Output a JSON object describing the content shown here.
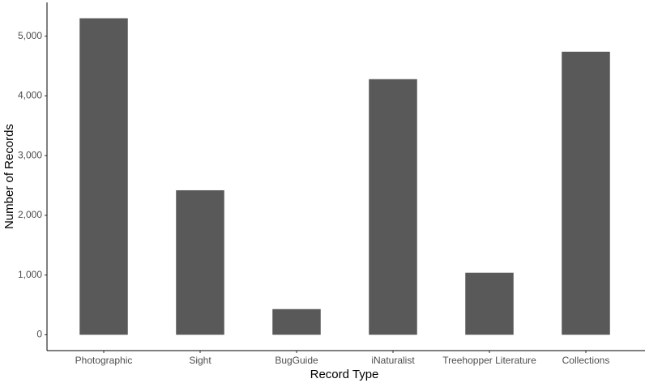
{
  "chart_data": {
    "type": "bar",
    "x_label": "Record Type",
    "y_label": "Number of Records",
    "categories": [
      "Photographic",
      "Sight",
      "BugGuide",
      "iNaturalist",
      "Treehopper Literature",
      "Collections"
    ],
    "values": [
      5300,
      2420,
      430,
      4280,
      1040,
      4740
    ],
    "color": "#595959",
    "ylim": [
      -265,
      5565
    ],
    "yticks": [
      0,
      {
        "value": 1000,
        "label": "1,000"
      },
      {
        "value": 2000,
        "label": "2,000"
      },
      {
        "value": 3000,
        "label": "3,000"
      },
      {
        "value": 4000,
        "label": "4,000"
      },
      {
        "value": 5000,
        "label": "5,000"
      }
    ],
    "grid": false
  }
}
